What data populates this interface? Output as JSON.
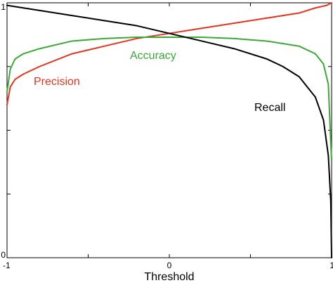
{
  "chart_data": {
    "type": "line",
    "title": "",
    "xlabel": "Threshold",
    "ylabel": "",
    "xlim": [
      -1,
      1
    ],
    "ylim": [
      0,
      1
    ],
    "x_ticks": [
      "-1",
      "0",
      "1"
    ],
    "y_ticks": [
      "0",
      "1"
    ],
    "grid": false,
    "legend": "none",
    "series": [
      {
        "name": "Precision",
        "color": "#e8341c",
        "x": [
          -1,
          -0.98,
          -0.95,
          -0.9,
          -0.8,
          -0.6,
          -0.4,
          -0.2,
          0,
          0.2,
          0.4,
          0.6,
          0.8,
          0.9,
          0.97,
          1
        ],
        "values": [
          0.6,
          0.67,
          0.7,
          0.72,
          0.75,
          0.8,
          0.83,
          0.86,
          0.88,
          0.9,
          0.92,
          0.94,
          0.96,
          0.98,
          0.99,
          1.0
        ]
      },
      {
        "name": "Accuracy",
        "color": "#3aa935",
        "x": [
          -1,
          -0.98,
          -0.95,
          -0.9,
          -0.8,
          -0.6,
          -0.4,
          -0.2,
          0,
          0.2,
          0.4,
          0.6,
          0.8,
          0.9,
          0.95,
          0.98,
          0.995,
          1
        ],
        "values": [
          0.65,
          0.74,
          0.78,
          0.8,
          0.82,
          0.85,
          0.86,
          0.865,
          0.865,
          0.865,
          0.86,
          0.85,
          0.83,
          0.8,
          0.76,
          0.68,
          0.45,
          0.38
        ]
      },
      {
        "name": "Recall",
        "color": "#000000",
        "x": [
          -1,
          -0.8,
          -0.6,
          -0.4,
          -0.2,
          0,
          0.2,
          0.4,
          0.6,
          0.7,
          0.8,
          0.9,
          0.95,
          0.98,
          0.995,
          1
        ],
        "values": [
          0.99,
          0.97,
          0.95,
          0.93,
          0.91,
          0.88,
          0.85,
          0.82,
          0.78,
          0.75,
          0.71,
          0.63,
          0.54,
          0.4,
          0.22,
          0.0
        ]
      }
    ],
    "annotations": [
      {
        "text": "Precision",
        "color": "#e8341c"
      },
      {
        "text": "Accuracy",
        "color": "#3aa935"
      },
      {
        "text": "Recall",
        "color": "#000000"
      }
    ]
  }
}
